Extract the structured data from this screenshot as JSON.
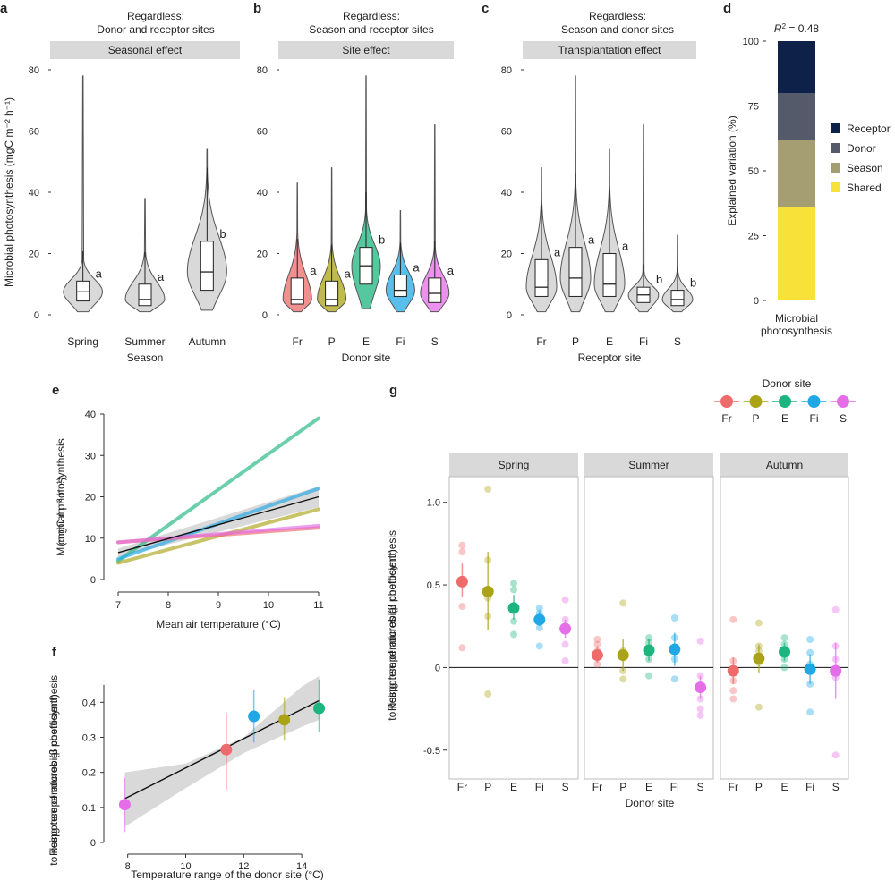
{
  "colors": {
    "Fr": "#EE6B6B",
    "P": "#ABA316",
    "E": "#1DB57F",
    "Fi": "#20A8E6",
    "S": "#E56DE8",
    "violin_grey": "#d9d9d9",
    "strip": "#d9d9d9",
    "band": "#cfcfcf",
    "Receptor": "#0E2148",
    "Donor": "#545A6A",
    "Season": "#A59E73",
    "Shared": "#F8E138"
  },
  "chart_data": [
    {
      "panel": "a",
      "type": "violin",
      "title": "Regardless:\nDonor and receptor sites",
      "strip_label": "Seasonal effect",
      "xlabel": "Season",
      "ylabel": "Microbial photosynthesis (mgC m⁻² h⁻¹)",
      "yticks": [
        0,
        20,
        40,
        60,
        80
      ],
      "ylim": [
        0,
        80
      ],
      "groups": [
        {
          "name": "Spring",
          "min": 1,
          "q1": 4.5,
          "median": 7.5,
          "q3": 11,
          "max": 78,
          "sig": "a"
        },
        {
          "name": "Summer",
          "min": 1,
          "q1": 3,
          "median": 5,
          "q3": 10,
          "max": 38,
          "sig": "a"
        },
        {
          "name": "Autumn",
          "min": 1.5,
          "q1": 8,
          "median": 14,
          "q3": 24,
          "max": 54,
          "sig": "b"
        }
      ]
    },
    {
      "panel": "b",
      "type": "violin",
      "title": "Regardless:\nSeason and receptor sites",
      "strip_label": "Site effect",
      "xlabel": "Donor site",
      "yticks": [
        0,
        20,
        40,
        60,
        80
      ],
      "ylim": [
        0,
        80
      ],
      "groups": [
        {
          "name": "Fr",
          "min": 1,
          "q1": 3.5,
          "median": 5,
          "q3": 12,
          "max": 43,
          "sig": "a"
        },
        {
          "name": "P",
          "min": 1,
          "q1": 3,
          "median": 5,
          "q3": 11,
          "max": 48,
          "sig": "a"
        },
        {
          "name": "E",
          "min": 2,
          "q1": 10,
          "median": 16,
          "q3": 22,
          "max": 78,
          "sig": "b"
        },
        {
          "name": "Fi",
          "min": 1,
          "q1": 6,
          "median": 8,
          "q3": 13,
          "max": 34,
          "sig": "a"
        },
        {
          "name": "S",
          "min": 1,
          "q1": 4,
          "median": 7,
          "q3": 12,
          "max": 62,
          "sig": "a"
        }
      ]
    },
    {
      "panel": "c",
      "type": "violin",
      "title": "Regardless:\nSeason and donor sites",
      "strip_label": "Transplantation effect",
      "xlabel": "Receptor site",
      "yticks": [
        0,
        20,
        40,
        60,
        80
      ],
      "ylim": [
        0,
        80
      ],
      "groups": [
        {
          "name": "Fr",
          "min": 1,
          "q1": 6,
          "median": 9,
          "q3": 18,
          "max": 48,
          "sig": "a"
        },
        {
          "name": "P",
          "min": 1,
          "q1": 6,
          "median": 12,
          "q3": 22,
          "max": 78,
          "sig": "a"
        },
        {
          "name": "E",
          "min": 1,
          "q1": 6,
          "median": 10,
          "q3": 20,
          "max": 54,
          "sig": "a"
        },
        {
          "name": "Fi",
          "min": 1,
          "q1": 4,
          "median": 6.5,
          "q3": 9,
          "max": 62,
          "sig": "b"
        },
        {
          "name": "S",
          "min": 1,
          "q1": 3,
          "median": 5,
          "q3": 8,
          "max": 26,
          "sig": "b"
        }
      ]
    },
    {
      "panel": "d",
      "type": "stacked_bar",
      "title_prefix": "R",
      "title_sup": "2",
      "title_suffix": " = 0.48",
      "ylabel": "Explained variation (%)",
      "yticks": [
        0,
        25,
        50,
        75,
        100
      ],
      "ylim": [
        0,
        100
      ],
      "category": "Microbial\nphotosynthesis",
      "segments": [
        {
          "name": "Shared",
          "value": 36
        },
        {
          "name": "Season",
          "value": 26
        },
        {
          "name": "Donor",
          "value": 18
        },
        {
          "name": "Receptor",
          "value": 20
        }
      ],
      "legend": [
        "Receptor",
        "Donor",
        "Season",
        "Shared"
      ]
    },
    {
      "panel": "e",
      "type": "line",
      "xlabel": "Mean air temperature (°C)",
      "ylabel": "Microbial photosynthesis\n(mgC m⁻² h⁻¹)",
      "xticks": [
        7,
        8,
        9,
        10,
        11
      ],
      "xlim": [
        7,
        11
      ],
      "yticks": [
        0,
        10,
        20,
        30,
        40
      ],
      "ylim": [
        0,
        40
      ],
      "series": [
        {
          "name": "E",
          "x": [
            7,
            11
          ],
          "y": [
            4.5,
            39
          ]
        },
        {
          "name": "Fi",
          "x": [
            7,
            11
          ],
          "y": [
            5,
            22
          ]
        },
        {
          "name": "P",
          "x": [
            7,
            11
          ],
          "y": [
            4,
            17
          ]
        },
        {
          "name": "Fr",
          "x": [
            7,
            11
          ],
          "y": [
            9,
            12.5
          ]
        },
        {
          "name": "S",
          "x": [
            7,
            11
          ],
          "y": [
            9,
            13
          ]
        },
        {
          "name": "Overall",
          "x": [
            7,
            11
          ],
          "y": [
            6.5,
            20
          ],
          "band_lower": [
            5.5,
            17.5
          ],
          "band_upper": [
            7.5,
            22.5
          ]
        }
      ]
    },
    {
      "panel": "f",
      "type": "scatter",
      "xlabel": "Temperature range of the donor site (°C)",
      "ylabel": "Response of microbial photosynthesis\nto rising temperatures (β coefficient)",
      "xticks": [
        8,
        10,
        12,
        14
      ],
      "xlim": [
        7.3,
        15.2
      ],
      "yticks": [
        0,
        0.1,
        0.2,
        0.3,
        0.4
      ],
      "ylim": [
        0,
        0.48
      ],
      "points": [
        {
          "name": "S",
          "x": 7.9,
          "y": 0.108,
          "lo": 0.03,
          "hi": 0.185
        },
        {
          "name": "Fr",
          "x": 11.4,
          "y": 0.265,
          "lo": 0.15,
          "hi": 0.37
        },
        {
          "name": "Fi",
          "x": 12.35,
          "y": 0.36,
          "lo": 0.285,
          "hi": 0.435
        },
        {
          "name": "P",
          "x": 13.4,
          "y": 0.35,
          "lo": 0.29,
          "hi": 0.415
        },
        {
          "name": "E",
          "x": 14.6,
          "y": 0.383,
          "lo": 0.315,
          "hi": 0.465
        }
      ],
      "fit": {
        "x": [
          7.9,
          14.6
        ],
        "y": [
          0.125,
          0.405
        ]
      },
      "band": {
        "x": [
          7.9,
          10,
          12,
          14,
          14.6
        ],
        "lower": [
          0.045,
          0.155,
          0.255,
          0.33,
          0.35
        ],
        "upper": [
          0.2,
          0.225,
          0.3,
          0.445,
          0.475
        ]
      }
    },
    {
      "panel": "g",
      "type": "faceted_dot",
      "legend_title": "Donor site",
      "legend": [
        "Fr",
        "P",
        "E",
        "Fi",
        "S"
      ],
      "xlabel": "Donor site",
      "ylabel": "Response of microbial photosynthesis\nto rising temperatures (β coefficient)",
      "yticks": [
        -0.5,
        0,
        0.5,
        1.0
      ],
      "ytick_labels": [
        "-0.5",
        "0",
        "0.5",
        "1.0"
      ],
      "ylim": [
        -0.68,
        1.15
      ],
      "categories": [
        "Fr",
        "P",
        "E",
        "Fi",
        "S"
      ],
      "facets": [
        {
          "name": "Spring",
          "means": [
            0.52,
            0.46,
            0.36,
            0.29,
            0.235
          ],
          "lo": [
            0.43,
            0.23,
            0.29,
            0.25,
            0.18
          ],
          "hi": [
            0.63,
            0.7,
            0.44,
            0.34,
            0.29
          ],
          "points": [
            [
              0.12,
              0.37,
              0.52,
              0.7,
              0.74
            ],
            [
              -0.16,
              0.31,
              0.42,
              0.65,
              1.08
            ],
            [
              0.2,
              0.28,
              0.36,
              0.47,
              0.51
            ],
            [
              0.13,
              0.24,
              0.29,
              0.33,
              0.36
            ],
            [
              0.04,
              0.14,
              0.22,
              0.29,
              0.41
            ]
          ]
        },
        {
          "name": "Summer",
          "means": [
            0.075,
            0.075,
            0.105,
            0.11,
            -0.12
          ],
          "lo": [
            0.03,
            -0.02,
            0.04,
            0.01,
            -0.19
          ],
          "hi": [
            0.13,
            0.17,
            0.17,
            0.21,
            -0.05
          ],
          "points": [
            [
              0.02,
              0.06,
              0.1,
              0.14,
              0.17
            ],
            [
              -0.07,
              -0.02,
              0.06,
              0.1,
              0.39
            ],
            [
              -0.05,
              0.05,
              0.1,
              0.15,
              0.18
            ],
            [
              -0.07,
              0.05,
              0.1,
              0.18,
              0.3
            ],
            [
              -0.29,
              -0.25,
              -0.19,
              -0.05,
              0.16
            ]
          ]
        },
        {
          "name": "Autumn",
          "means": [
            -0.02,
            0.055,
            0.095,
            -0.01,
            -0.02
          ],
          "lo": [
            -0.1,
            -0.03,
            0.04,
            -0.1,
            -0.19
          ],
          "hi": [
            0.06,
            0.14,
            0.15,
            0.08,
            0.15
          ],
          "points": [
            [
              -0.19,
              -0.14,
              -0.08,
              0.04,
              0.29
            ],
            [
              -0.24,
              0.03,
              0.1,
              0.13,
              0.27
            ],
            [
              0.0,
              0.05,
              0.1,
              0.14,
              0.18
            ],
            [
              -0.27,
              -0.1,
              0.02,
              0.09,
              0.17
            ],
            [
              -0.53,
              -0.06,
              0.05,
              0.13,
              0.35
            ]
          ]
        }
      ]
    }
  ]
}
